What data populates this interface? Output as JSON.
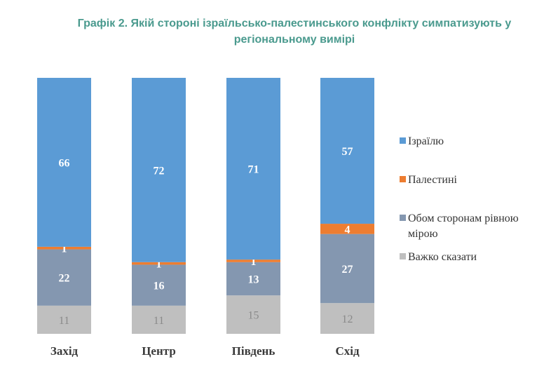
{
  "chart_data": {
    "type": "bar",
    "stacked": true,
    "title": "Графік 2. Якій стороні ізраїльсько-палестинського конфлікту симпатизують у регіональному вимірі",
    "title_lines": [
      "Графік 2. Якій стороні ізраїльсько-палестинського конфлікту симпатизують у",
      "регіональному вимірі"
    ],
    "categories": [
      "Захід",
      "Центр",
      "Південь",
      "Схід"
    ],
    "series": [
      {
        "name": "Важко сказати",
        "values": [
          11,
          11,
          15,
          12
        ],
        "color": "#bfbfbf",
        "label_color": "#8a8a8a"
      },
      {
        "name": "Обом сторонам рівною мірою",
        "values": [
          22,
          16,
          13,
          27
        ],
        "color": "#8497b0",
        "label_color": "#ffffff"
      },
      {
        "name": "Палестині",
        "values": [
          1,
          1,
          1,
          4
        ],
        "color": "#ed7d31",
        "label_color": "#ffffff"
      },
      {
        "name": "Ізраїлю",
        "values": [
          66,
          72,
          71,
          57
        ],
        "color": "#5b9bd5",
        "label_color": "#ffffff"
      }
    ],
    "legend": {
      "position": "right",
      "entries": [
        {
          "lines": [
            "Ізраїлю"
          ],
          "color": "#5b9bd5"
        },
        {
          "lines": [
            "Палестині"
          ],
          "color": "#ed7d31"
        },
        {
          "lines": [
            "Обом сторонам рівною",
            "мірою"
          ],
          "color": "#8497b0"
        },
        {
          "lines": [
            "Важко сказати"
          ],
          "color": "#bfbfbf"
        }
      ]
    },
    "grid": false,
    "ylim": [
      0,
      100
    ]
  }
}
